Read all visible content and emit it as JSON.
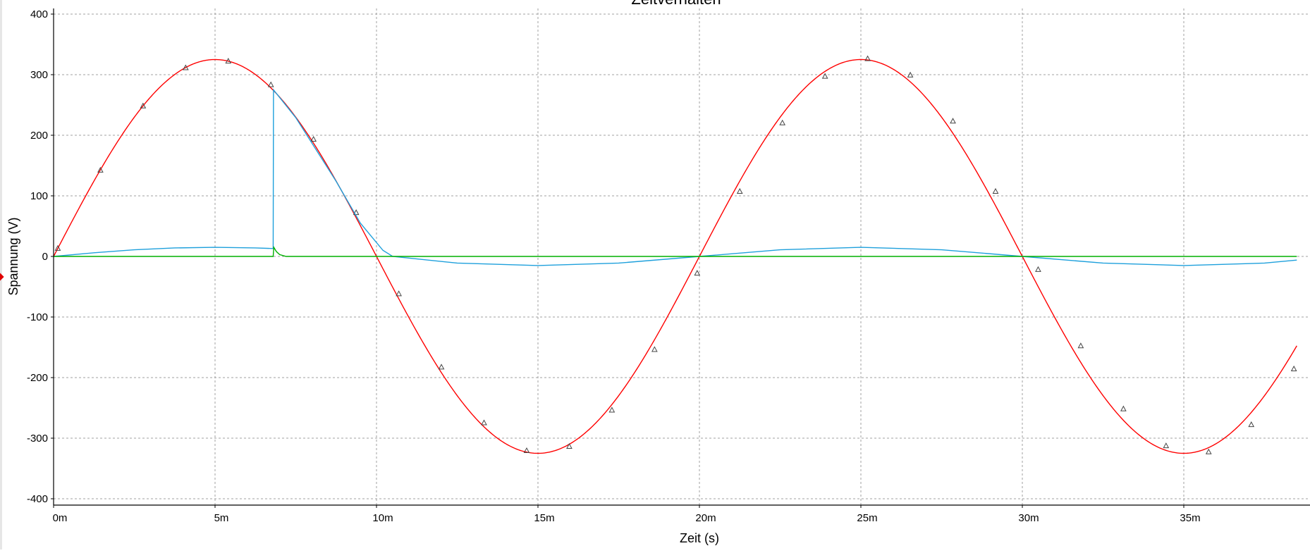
{
  "chart_data": {
    "type": "line",
    "title": "Zeitverhalten",
    "xlabel": "Zeit (s)",
    "ylabel": "Spannung (V)",
    "xlim": [
      0,
      0.0385
    ],
    "ylim": [
      -400,
      400
    ],
    "x_ticks": [
      0,
      0.005,
      0.01,
      0.015,
      0.02,
      0.025,
      0.03,
      0.035
    ],
    "x_tick_labels": [
      "0m",
      "5m",
      "10m",
      "15m",
      "20m",
      "25m",
      "30m",
      "35m"
    ],
    "y_ticks": [
      -400,
      -300,
      -200,
      -100,
      0,
      100,
      200,
      300,
      400
    ],
    "y_tick_labels": [
      "-400",
      "-300",
      "-200",
      "-100",
      "0",
      "100",
      "200",
      "300",
      "400"
    ],
    "grid": true,
    "series": [
      {
        "color": "#ff0000",
        "marker": "triangle",
        "x": [
          0,
          0.00125,
          0.0025,
          0.00375,
          0.005,
          0.00625,
          0.0075,
          0.00875,
          0.01,
          0.01125,
          0.0125,
          0.01375,
          0.015,
          0.01625,
          0.0175,
          0.01875,
          0.02,
          0.02125,
          0.0225,
          0.02375,
          0.025,
          0.02625,
          0.0275,
          0.02875,
          0.03,
          0.03125,
          0.0325,
          0.03375,
          0.035,
          0.03625,
          0.0375,
          0.0385
        ],
        "y": [
          0,
          124,
          229,
          300,
          325,
          300,
          229,
          124,
          0,
          -124,
          -229,
          -300,
          -325,
          -300,
          -229,
          -124,
          0,
          124,
          229,
          300,
          325,
          300,
          229,
          124,
          0,
          -124,
          -229,
          -300,
          -325,
          -300,
          -229,
          -116
        ],
        "marker_x": [
          0.00013,
          0.00145,
          0.00277,
          0.00409,
          0.00541,
          0.00673,
          0.00805,
          0.00937,
          0.01069,
          0.01201,
          0.01333,
          0.01465,
          0.01597,
          0.01729,
          0.01861,
          0.01993,
          0.02125,
          0.02257,
          0.02389,
          0.02521,
          0.02653,
          0.02785,
          0.02917,
          0.03049,
          0.03181,
          0.03313,
          0.03445,
          0.03577,
          0.03709,
          0.03841
        ],
        "marker_y": [
          13,
          142,
          248,
          311,
          322,
          283,
          193,
          72,
          -62,
          -183,
          -275,
          -321,
          -314,
          -254,
          -154,
          -28,
          107,
          220,
          297,
          326,
          299,
          223,
          107,
          -22,
          -148,
          -252,
          -313,
          -323,
          -278,
          -186
        ]
      },
      {
        "color": "#1ea0dc",
        "x": [
          0,
          0.00125,
          0.0025,
          0.00375,
          0.005,
          0.00625,
          0.0068,
          0.00681,
          0.0075,
          0.00875,
          0.0095,
          0.0102,
          0.0105,
          0.0125,
          0.015,
          0.0175,
          0.02,
          0.0225,
          0.025,
          0.0275,
          0.03,
          0.0325,
          0.035,
          0.0375,
          0.0385
        ],
        "y": [
          0,
          6,
          11,
          14,
          15,
          14,
          13,
          275,
          229,
          124,
          55,
          10,
          0,
          -11,
          -15,
          -11,
          0,
          11,
          15,
          11,
          0,
          -11,
          -15,
          -11,
          -6
        ]
      },
      {
        "color": "#00b000",
        "x": [
          0,
          0.0068,
          0.00682,
          0.0069,
          0.007,
          0.0072,
          0.0385
        ],
        "y": [
          0,
          0,
          15,
          8,
          3,
          0,
          0
        ]
      }
    ]
  }
}
